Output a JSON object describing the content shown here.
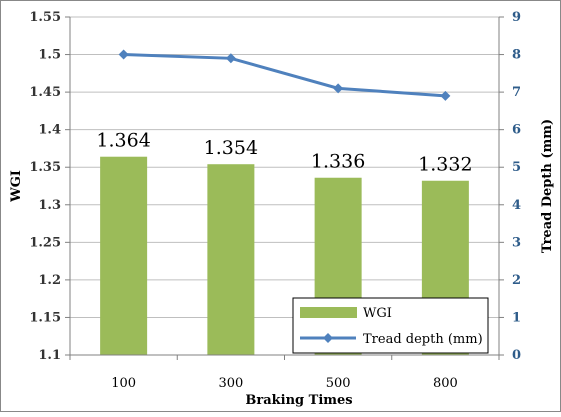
{
  "chart_data": {
    "type": "bar+line",
    "categories": [
      "100",
      "300",
      "500",
      "800"
    ],
    "xlabel": "Braking Times",
    "ylabel_left": "WGI",
    "ylabel_right": "Tread Depth (mm)",
    "ylim_left": [
      1.1,
      1.55
    ],
    "ylim_right": [
      0,
      9
    ],
    "yticks_left": [
      "1.1",
      "1.15",
      "1.2",
      "1.25",
      "1.3",
      "1.35",
      "1.4",
      "1.45",
      "1.5",
      "1.55"
    ],
    "yticks_right": [
      "0",
      "1",
      "2",
      "3",
      "4",
      "5",
      "6",
      "7",
      "8",
      "9"
    ],
    "grid": true,
    "legend_position": "bottom-right",
    "series": [
      {
        "name": "WGI",
        "type": "bar",
        "axis": "left",
        "color": "#9bbb59",
        "values": [
          1.364,
          1.354,
          1.336,
          1.332
        ],
        "labels": [
          "1.364",
          "1.354",
          "1.336",
          "1.332"
        ]
      },
      {
        "name": "Tread depth (mm)",
        "type": "line",
        "axis": "right",
        "color": "#4f81bd",
        "marker": "diamond",
        "values": [
          8.0,
          7.9,
          7.1,
          6.9
        ]
      }
    ]
  }
}
